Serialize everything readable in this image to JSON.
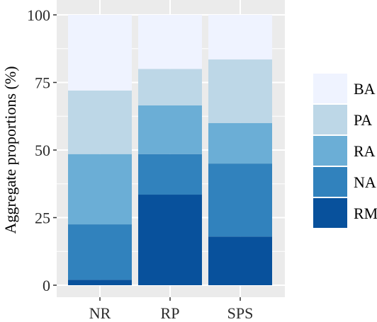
{
  "chart_data": {
    "type": "bar",
    "stacked": true,
    "categories": [
      "NR",
      "RP",
      "SPS"
    ],
    "series": [
      {
        "name": "RM",
        "values": [
          2,
          33.5,
          18
        ],
        "color": "#08519c"
      },
      {
        "name": "NA",
        "values": [
          20.5,
          15,
          27
        ],
        "color": "#3182bd"
      },
      {
        "name": "RA",
        "values": [
          26,
          18,
          15
        ],
        "color": "#6baed6"
      },
      {
        "name": "PA",
        "values": [
          23.5,
          13.5,
          23.5
        ],
        "color": "#bdd7e7"
      },
      {
        "name": "BA",
        "values": [
          28,
          20,
          16.5
        ],
        "color": "#eff3ff"
      }
    ],
    "ylabel": "Aggregate proportions (%)",
    "xlabel": "",
    "ylim": [
      0,
      100
    ],
    "yticks": [
      0,
      25,
      50,
      75,
      100
    ],
    "legend_order": [
      "BA",
      "PA",
      "RA",
      "NA",
      "RM"
    ],
    "legend_position": "right",
    "grid": true,
    "panel_background": "#ebebeb",
    "grid_color": "#ffffff"
  }
}
